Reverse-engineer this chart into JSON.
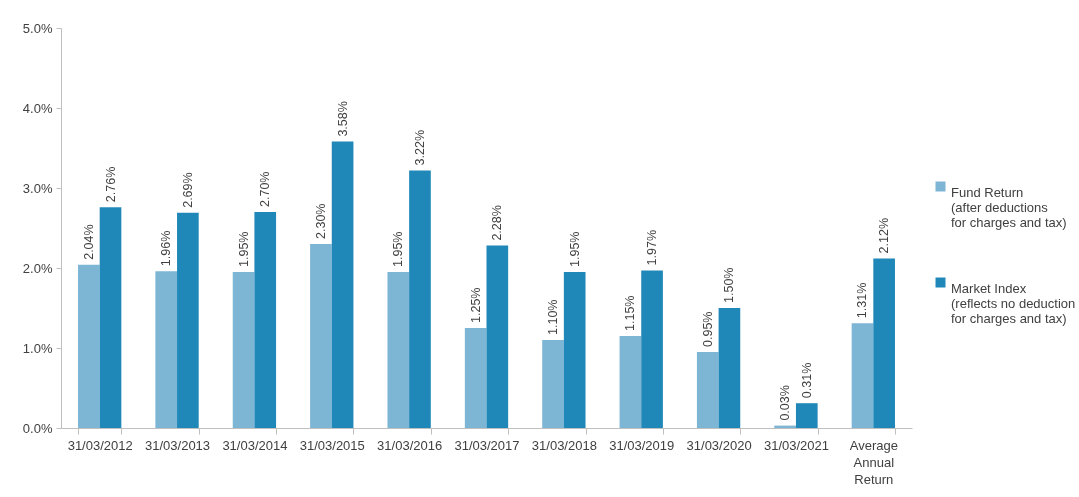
{
  "chart_data": {
    "type": "bar",
    "categories": [
      "31/03/2012",
      "31/03/2013",
      "31/03/2014",
      "31/03/2015",
      "31/03/2016",
      "31/03/2017",
      "31/03/2018",
      "31/03/2019",
      "31/03/2020",
      "31/03/2021",
      "Average Annual Return"
    ],
    "series": [
      {
        "name": "Fund Return\n(after deductions\nfor charges and tax)",
        "color": "#7db5d5",
        "values": [
          2.04,
          1.96,
          1.95,
          2.3,
          1.95,
          1.25,
          1.1,
          1.15,
          0.95,
          0.03,
          1.31
        ],
        "value_labels": [
          "2.04%",
          "1.96%",
          "1.95%",
          "2.30%",
          "1.95%",
          "1.25%",
          "1.10%",
          "1.15%",
          "0.95%",
          "0.03%",
          "1.31%"
        ]
      },
      {
        "name": "Market Index\n(reflects no deduction\nfor charges and tax)",
        "color": "#2088b8",
        "values": [
          2.76,
          2.69,
          2.7,
          3.58,
          3.22,
          2.28,
          1.95,
          1.97,
          1.5,
          0.31,
          2.12
        ],
        "value_labels": [
          "2.76%",
          "2.69%",
          "2.70%",
          "3.58%",
          "3.22%",
          "2.28%",
          "1.95%",
          "1.97%",
          "1.50%",
          "0.31%",
          "2.12%"
        ]
      }
    ],
    "ylim": [
      0,
      5
    ],
    "yticks": [
      {
        "value": 0,
        "label": "0.0%"
      },
      {
        "value": 1,
        "label": "1.0%"
      },
      {
        "value": 2,
        "label": "2.0%"
      },
      {
        "value": 3,
        "label": "3.0%"
      },
      {
        "value": 4,
        "label": "4.0%"
      },
      {
        "value": 5,
        "label": "5.0%"
      }
    ],
    "grid": false,
    "legend": "right"
  }
}
